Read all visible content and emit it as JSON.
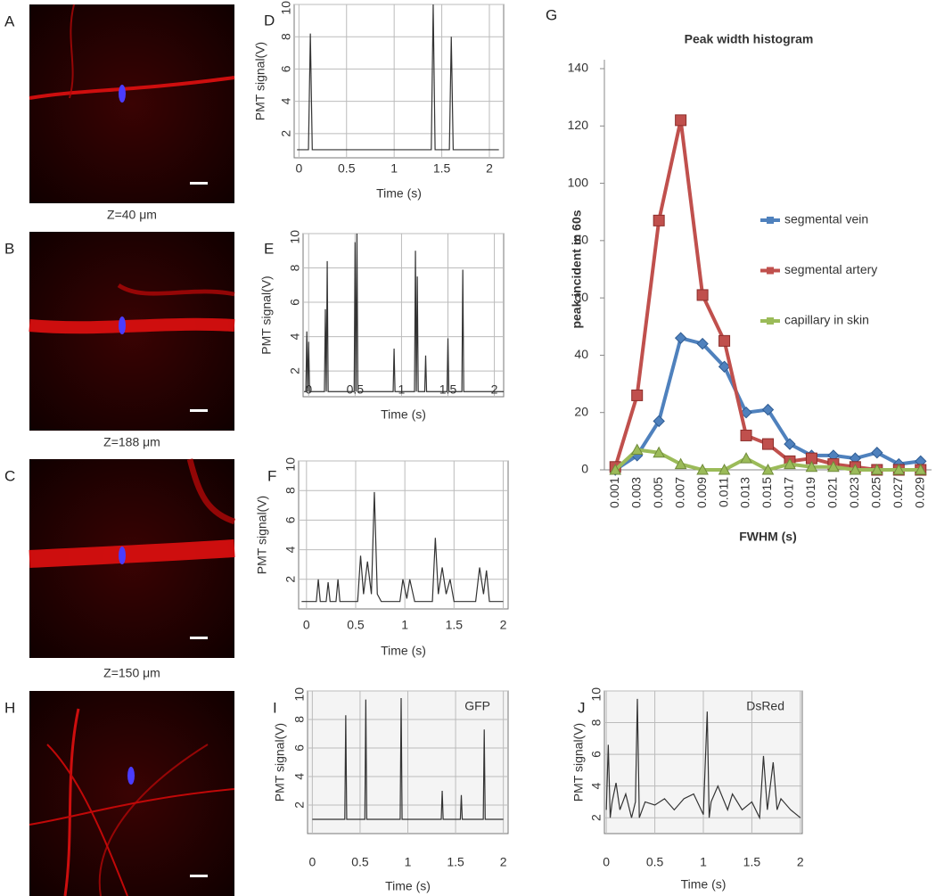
{
  "images": [
    {
      "label": "A",
      "caption": "Z=40 μm"
    },
    {
      "label": "B",
      "caption": "Z=188 μm"
    },
    {
      "label": "C",
      "caption": "Z=150 μm"
    },
    {
      "label": "H"
    }
  ],
  "chart_data": [
    {
      "type": "line",
      "label": "D",
      "x_label": "Time (s)",
      "y_label": "PMT signal(V)",
      "color": "#333333",
      "grid": true,
      "x": [
        -0.02,
        0.1,
        0.12,
        0.14,
        1.39,
        1.41,
        1.43,
        1.58,
        1.6,
        1.62,
        2.1
      ],
      "values": [
        1,
        1,
        8.2,
        1,
        1,
        10,
        1,
        1,
        8,
        1,
        1
      ],
      "xlim": [
        -0.05,
        2.15
      ],
      "ylim": [
        0.5,
        10
      ],
      "xticks": [
        0,
        0.5,
        1,
        1.5,
        2
      ],
      "yticks": [
        2,
        4,
        6,
        8,
        10
      ]
    },
    {
      "type": "line",
      "label": "E",
      "x_label": "Time (s)",
      "y_label": "PMT signal(V)",
      "color": "#333333",
      "grid": true,
      "x": [
        -0.05,
        -0.03,
        -0.02,
        -0.01,
        0,
        0.01,
        0.17,
        0.18,
        0.19,
        0.2,
        0.21,
        0.49,
        0.5,
        0.51,
        0.52,
        0.53,
        0.91,
        0.92,
        0.93,
        1.14,
        1.15,
        1.16,
        1.17,
        1.18,
        1.25,
        1.26,
        1.27,
        1.49,
        1.5,
        1.51,
        1.65,
        1.66,
        1.67,
        2.1
      ],
      "values": [
        0.8,
        0.8,
        4.3,
        0.8,
        3.7,
        0.8,
        0.8,
        5.6,
        0.8,
        8.4,
        0.8,
        0.8,
        9.5,
        0.8,
        10,
        0.8,
        0.8,
        3.3,
        0.8,
        0.8,
        9,
        0.8,
        7.5,
        0.8,
        0.8,
        2.9,
        0.8,
        0.8,
        3.9,
        0.8,
        0.8,
        7.9,
        0.8,
        0.8
      ],
      "xlim": [
        -0.06,
        2.1
      ],
      "ylim": [
        0.5,
        10
      ],
      "xticks": [
        0,
        0.5,
        1,
        1.5,
        2
      ],
      "yticks": [
        2,
        4,
        6,
        8,
        10
      ]
    },
    {
      "type": "line",
      "label": "F",
      "x_label": "Time (s)",
      "y_label": "PMT signal(V)",
      "color": "#333333",
      "grid": true,
      "x": [
        -0.05,
        0.1,
        0.12,
        0.14,
        0.2,
        0.22,
        0.24,
        0.3,
        0.32,
        0.34,
        0.52,
        0.55,
        0.58,
        0.62,
        0.66,
        0.69,
        0.72,
        0.76,
        0.95,
        0.98,
        1.02,
        1.05,
        1.1,
        1.28,
        1.31,
        1.34,
        1.38,
        1.42,
        1.46,
        1.5,
        1.72,
        1.76,
        1.8,
        1.83,
        1.86,
        2.0
      ],
      "values": [
        0.5,
        0.5,
        2,
        0.5,
        0.5,
        1.8,
        0.5,
        0.5,
        2,
        0.5,
        0.5,
        3.6,
        1,
        3.2,
        1,
        7.9,
        1,
        0.5,
        0.5,
        2,
        0.7,
        2,
        0.5,
        0.5,
        4.8,
        1,
        2.8,
        1,
        2,
        0.5,
        0.5,
        2.8,
        1,
        2.6,
        0.5,
        0.5
      ],
      "xlim": [
        -0.08,
        2.05
      ],
      "ylim": [
        0,
        10
      ],
      "xticks": [
        0,
        0.5,
        1,
        1.5,
        2
      ],
      "yticks": [
        2,
        4,
        6,
        8,
        10
      ]
    },
    {
      "type": "line",
      "label": "I",
      "x_label": "Time (s)",
      "y_label": "PMT signal(V)",
      "color": "#333333",
      "grid": true,
      "annotation": "GFP",
      "annotation_color": "#77933c",
      "x": [
        0,
        0.34,
        0.35,
        0.36,
        0.55,
        0.56,
        0.57,
        0.92,
        0.93,
        0.94,
        1.35,
        1.36,
        1.37,
        1.55,
        1.56,
        1.57,
        1.79,
        1.8,
        1.81,
        2
      ],
      "values": [
        1,
        1,
        8.3,
        1,
        1,
        9.4,
        1,
        1,
        9.5,
        1,
        1,
        3,
        1,
        1,
        2.7,
        1,
        1,
        7.3,
        1,
        1
      ],
      "xlim": [
        -0.05,
        2.05
      ],
      "ylim": [
        0,
        10
      ],
      "xticks": [
        0,
        0.5,
        1,
        1.5,
        2
      ],
      "yticks": [
        2,
        4,
        6,
        8,
        10
      ]
    },
    {
      "type": "line",
      "label": "J",
      "x_label": "Time (s)",
      "y_label": "PMT signal(V)",
      "color": "#333333",
      "grid": true,
      "annotation": "DsRed",
      "annotation_color": "#e46c0a",
      "x": [
        0,
        0.02,
        0.04,
        0.06,
        0.1,
        0.14,
        0.2,
        0.26,
        0.3,
        0.32,
        0.34,
        0.4,
        0.5,
        0.6,
        0.7,
        0.8,
        0.9,
        1.0,
        1.04,
        1.06,
        1.08,
        1.15,
        1.25,
        1.3,
        1.4,
        1.5,
        1.58,
        1.62,
        1.66,
        1.72,
        1.76,
        1.8,
        1.9,
        2.0
      ],
      "values": [
        2.5,
        6.6,
        2,
        3,
        4.2,
        2.5,
        3.5,
        2,
        3,
        9.5,
        2,
        3,
        2.8,
        3.2,
        2.5,
        3.2,
        3.5,
        2.2,
        8.7,
        2,
        3,
        4,
        2.5,
        3.5,
        2.5,
        3,
        2,
        5.9,
        2.5,
        5.5,
        2.5,
        3.2,
        2.5,
        2
      ],
      "xlim": [
        -0.02,
        2.02
      ],
      "ylim": [
        1,
        10
      ],
      "xticks": [
        0,
        0.5,
        1,
        1.5,
        2
      ],
      "yticks": [
        2,
        4,
        6,
        8,
        10
      ]
    },
    {
      "type": "line",
      "label": "G",
      "title": "Peak width histogram",
      "x_label": "FWHM (s)",
      "y_label": "peak incident in 60s",
      "grid": false,
      "legend": "right",
      "categories": [
        "0.001",
        "0.003",
        "0.005",
        "0.007",
        "0.009",
        "0.011",
        "0.013",
        "0.015",
        "0.017",
        "0.019",
        "0.021",
        "0.023",
        "0.025",
        "0.027",
        "0.029"
      ],
      "series": [
        {
          "name": "segmental vein",
          "color": "#4f81bd",
          "marker": "diamond",
          "values": [
            0,
            5,
            17,
            46,
            44,
            36,
            20,
            21,
            9,
            5,
            5,
            4,
            6,
            2,
            3
          ]
        },
        {
          "name": "segmental artery",
          "color": "#c0504d",
          "marker": "square",
          "values": [
            1,
            26,
            87,
            122,
            61,
            45,
            12,
            9,
            3,
            4,
            2,
            1,
            0,
            0,
            0
          ]
        },
        {
          "name": "capillary in skin",
          "color": "#9bbb59",
          "marker": "triangle",
          "values": [
            0,
            7,
            6,
            2,
            0,
            0,
            4,
            0,
            2,
            1,
            1,
            0,
            0,
            0,
            0
          ]
        }
      ],
      "ylim": [
        0,
        140
      ],
      "yticks": [
        0,
        20,
        40,
        60,
        80,
        100,
        120,
        140
      ]
    }
  ]
}
